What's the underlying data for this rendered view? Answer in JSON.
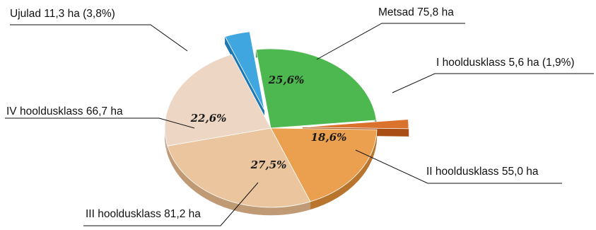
{
  "chart_data": {
    "type": "pie",
    "title": "",
    "slices": [
      {
        "name": "Metsad",
        "area_ha": 75.8,
        "share_pct": 25.6,
        "label": "Metsad 75,8 ha",
        "pct_label": "25,6%",
        "color": "#4cb84f",
        "side": "#2e8a34",
        "exploded": false
      },
      {
        "name": "I hooldusklass",
        "area_ha": 5.6,
        "share_pct": 1.9,
        "label": "I hooldusklass 5,6 ha (1,9%)",
        "pct_label": "",
        "color": "#d9722c",
        "side": "#a94f16",
        "exploded": true
      },
      {
        "name": "II hooldusklass",
        "area_ha": 55.0,
        "share_pct": 18.6,
        "label": "II hooldusklass 55,0 ha",
        "pct_label": "18,6%",
        "color": "#eba04f",
        "side": "#b9742e",
        "exploded": false
      },
      {
        "name": "III hooldusklass",
        "area_ha": 81.2,
        "share_pct": 27.5,
        "label": "III hooldusklass 81,2 ha",
        "pct_label": "27,5%",
        "color": "#eac59d",
        "side": "#bf9a74",
        "exploded": false
      },
      {
        "name": "IV hooldusklass",
        "area_ha": 66.7,
        "share_pct": 22.6,
        "label": "IV hooldusklass 66,7 ha",
        "pct_label": "22,6%",
        "color": "#eed6c4",
        "side": "#c4a792",
        "exploded": false
      },
      {
        "name": "Ujulad",
        "area_ha": 11.3,
        "share_pct": 3.8,
        "label": "Ujulad 11,3 ha (3,8%)",
        "pct_label": "",
        "color": "#3fa6e0",
        "side": "#1f78b4",
        "exploded": true
      }
    ]
  }
}
